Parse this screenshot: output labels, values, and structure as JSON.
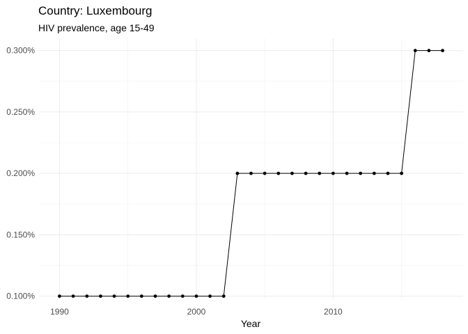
{
  "chart_data": {
    "type": "line",
    "title": "Country: Luxembourg",
    "subtitle": "HIV prevalence, age 15-49",
    "xlabel": "Year",
    "ylabel": "",
    "xlim": [
      1988.5,
      2019.5
    ],
    "ylim": [
      0.0975,
      0.31
    ],
    "x_ticks": [
      1990,
      2000,
      2010
    ],
    "y_ticks": [
      0.1,
      0.15,
      0.2,
      0.25,
      0.3
    ],
    "y_tick_labels": [
      "0.100%",
      "0.150%",
      "0.200%",
      "0.250%",
      "0.300%"
    ],
    "grid": true,
    "legend": "none",
    "series": [
      {
        "color": "#000000",
        "x": [
          1990,
          1991,
          1992,
          1993,
          1994,
          1995,
          1996,
          1997,
          1998,
          1999,
          2000,
          2001,
          2002,
          2003,
          2004,
          2005,
          2006,
          2007,
          2008,
          2009,
          2010,
          2011,
          2012,
          2013,
          2014,
          2015,
          2016,
          2017,
          2018
        ],
        "y": [
          0.1,
          0.1,
          0.1,
          0.1,
          0.1,
          0.1,
          0.1,
          0.1,
          0.1,
          0.1,
          0.1,
          0.1,
          0.1,
          0.2,
          0.2,
          0.2,
          0.2,
          0.2,
          0.2,
          0.2,
          0.2,
          0.2,
          0.2,
          0.2,
          0.2,
          0.2,
          0.3,
          0.3,
          0.3
        ]
      }
    ]
  }
}
